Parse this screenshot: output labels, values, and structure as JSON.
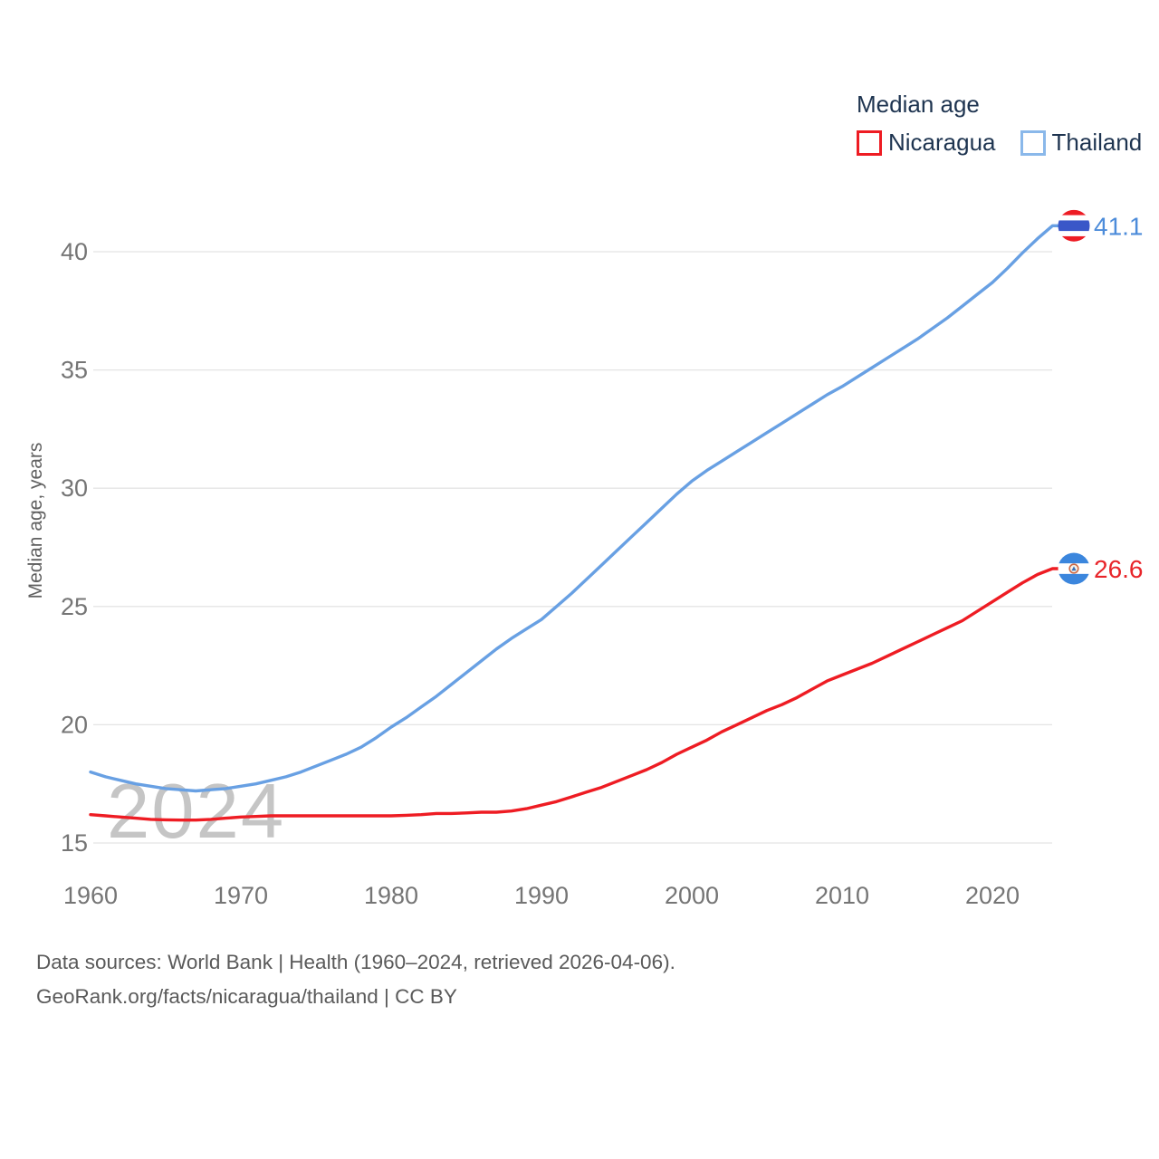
{
  "page": {
    "background": "#ffffff"
  },
  "legend": {
    "title": "Median age",
    "items": [
      {
        "label": "Nicaragua",
        "swatch_color": "#ee1c23"
      },
      {
        "label": "Thailand",
        "swatch_color": "#8ab8ea"
      }
    ]
  },
  "chart_data": {
    "type": "line",
    "title": "Median age",
    "xlabel": "",
    "ylabel": "Median age, years",
    "ylim": [
      15,
      42
    ],
    "yticks": [
      15,
      20,
      25,
      30,
      35,
      40
    ],
    "xticks": [
      1960,
      1970,
      1980,
      1990,
      2000,
      2010,
      2020
    ],
    "grid": true,
    "legend_position": "top-right",
    "watermark": "2024",
    "x": [
      1960,
      1961,
      1962,
      1963,
      1964,
      1965,
      1966,
      1967,
      1968,
      1969,
      1970,
      1971,
      1972,
      1973,
      1974,
      1975,
      1976,
      1977,
      1978,
      1979,
      1980,
      1981,
      1982,
      1983,
      1984,
      1985,
      1986,
      1987,
      1988,
      1989,
      1990,
      1991,
      1992,
      1993,
      1994,
      1995,
      1996,
      1997,
      1998,
      1999,
      2000,
      2001,
      2002,
      2003,
      2004,
      2005,
      2006,
      2007,
      2008,
      2009,
      2010,
      2011,
      2012,
      2013,
      2014,
      2015,
      2016,
      2017,
      2018,
      2019,
      2020,
      2021,
      2022,
      2023,
      2024
    ],
    "series": [
      {
        "name": "Thailand",
        "color": "#68a0e3",
        "label_color": "#4d8cda",
        "end_label": "41.1",
        "flag": "thailand",
        "values": [
          18.0,
          17.8,
          17.65,
          17.5,
          17.4,
          17.3,
          17.25,
          17.2,
          17.25,
          17.3,
          17.4,
          17.5,
          17.65,
          17.8,
          18.0,
          18.25,
          18.5,
          18.75,
          19.05,
          19.45,
          19.9,
          20.3,
          20.75,
          21.2,
          21.7,
          22.2,
          22.7,
          23.2,
          23.65,
          24.05,
          24.45,
          25.0,
          25.55,
          26.15,
          26.75,
          27.35,
          27.95,
          28.55,
          29.15,
          29.75,
          30.3,
          30.75,
          31.15,
          31.55,
          31.95,
          32.35,
          32.75,
          33.15,
          33.55,
          33.95,
          34.3,
          34.7,
          35.1,
          35.5,
          35.9,
          36.3,
          36.75,
          37.2,
          37.7,
          38.2,
          38.7,
          39.3,
          39.95,
          40.55,
          41.1
        ]
      },
      {
        "name": "Nicaragua",
        "color": "#ee1c23",
        "label_color": "#e8252a",
        "end_label": "26.6",
        "flag": "nicaragua",
        "values": [
          16.2,
          16.15,
          16.1,
          16.05,
          16.0,
          15.98,
          15.97,
          15.97,
          16.0,
          16.05,
          16.1,
          16.12,
          16.15,
          16.15,
          16.15,
          16.15,
          16.15,
          16.15,
          16.15,
          16.15,
          16.15,
          16.17,
          16.2,
          16.25,
          16.25,
          16.27,
          16.3,
          16.3,
          16.35,
          16.45,
          16.6,
          16.75,
          16.95,
          17.15,
          17.35,
          17.6,
          17.85,
          18.1,
          18.4,
          18.75,
          19.05,
          19.35,
          19.7,
          20.0,
          20.3,
          20.6,
          20.85,
          21.15,
          21.5,
          21.85,
          22.1,
          22.35,
          22.6,
          22.9,
          23.2,
          23.5,
          23.8,
          24.1,
          24.4,
          24.8,
          25.2,
          25.6,
          26.0,
          26.35,
          26.6
        ]
      }
    ]
  },
  "icons": {
    "thailand_flag": {
      "red": "#ed1c24",
      "white": "#ffffff",
      "blue": "#3a57c8"
    },
    "nicaragua_flag": {
      "blue": "#3b86dd",
      "white": "#ffffff",
      "emblem_ring": "#cf6a45",
      "emblem_fill": "#f7f2e9",
      "emblem_center": "#3b6fb5"
    }
  },
  "axis": {
    "tick_color": "#757575",
    "grid_color": "#e4e4e4",
    "ylabel_color": "#606060",
    "watermark_color": "#c5c5c5"
  },
  "footer": {
    "line1": "Data sources: World Bank | Health (1960–2024, retrieved 2026-04-06).",
    "line2": "GeoRank.org/facts/nicaragua/thailand | CC BY"
  }
}
